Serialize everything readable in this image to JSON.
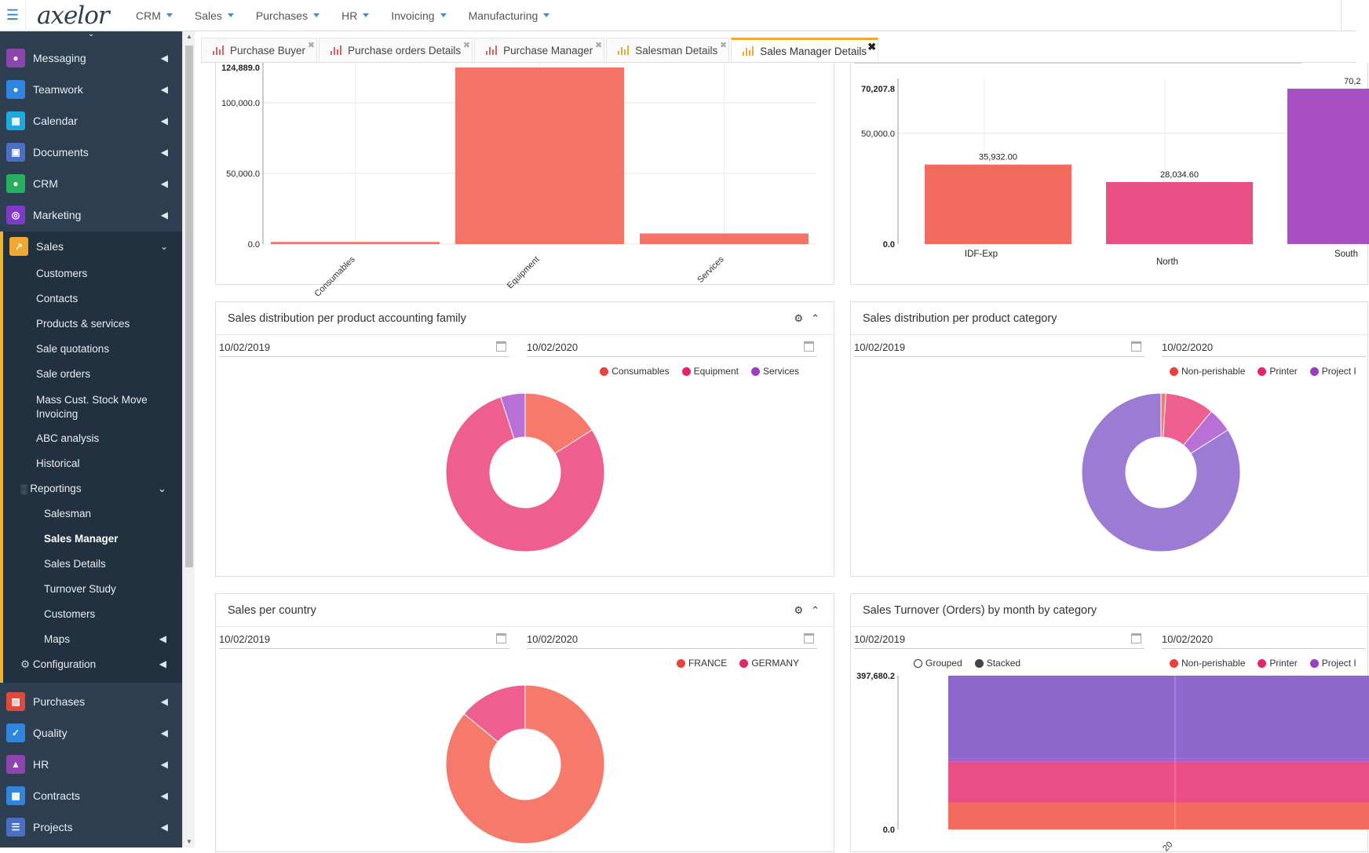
{
  "topbar": {
    "logo": "axelor",
    "menu": [
      "CRM",
      "Sales",
      "Purchases",
      "HR",
      "Invoicing",
      "Manufacturing"
    ]
  },
  "sidebar": {
    "modules_top": [
      {
        "label": "Messaging",
        "icon": "users-icon",
        "color": "#8e44ad"
      },
      {
        "label": "Teamwork",
        "icon": "user-icon",
        "color": "#2e86de"
      },
      {
        "label": "Calendar",
        "icon": "calendar-icon",
        "color": "#1da9e0"
      },
      {
        "label": "Documents",
        "icon": "document-icon",
        "color": "#4a6fc4"
      },
      {
        "label": "CRM",
        "icon": "user-icon",
        "color": "#27ae60"
      },
      {
        "label": "Marketing",
        "icon": "target-icon",
        "color": "#7d3cc8"
      }
    ],
    "sales": {
      "label": "Sales",
      "icon": "chart-line-icon",
      "color": "#f0a830",
      "items": [
        "Customers",
        "Contacts",
        "Products & services",
        "Sale quotations",
        "Sale orders",
        "Mass Cust. Stock Move Invoicing",
        "ABC analysis",
        "Historical"
      ],
      "reportings": {
        "label": "Reportings",
        "items": [
          "Salesman",
          "Sales Manager",
          "Sales Details",
          "Turnover Study",
          "Customers",
          "Maps"
        ],
        "active": "Sales Manager"
      },
      "configuration": "Configuration"
    },
    "modules_bottom": [
      {
        "label": "Purchases",
        "icon": "cart-icon",
        "color": "#e04a3c"
      },
      {
        "label": "Quality",
        "icon": "check-icon",
        "color": "#2e86de"
      },
      {
        "label": "HR",
        "icon": "org-chart-icon",
        "color": "#8e44ad"
      },
      {
        "label": "Contracts",
        "icon": "briefcase-icon",
        "color": "#2e86de"
      },
      {
        "label": "Projects",
        "icon": "list-icon",
        "color": "#4a6fc4"
      }
    ]
  },
  "tabs": [
    {
      "label": "Purchase Buyer",
      "active": false
    },
    {
      "label": "Purchase orders Details",
      "active": false
    },
    {
      "label": "Purchase Manager",
      "active": false
    },
    {
      "label": "Salesman Details",
      "active": false
    },
    {
      "label": "Sales Manager Details",
      "active": true
    }
  ],
  "panels": {
    "top_left": {
      "chart_data": {
        "type": "bar",
        "categories": [
          "Consumables",
          "Equipment",
          "Services"
        ],
        "values": [
          1500,
          124889.0,
          7500
        ],
        "ylim": [
          0,
          124889.0
        ],
        "yticks": [
          "124,889.0",
          "100,000.0",
          "50,000.0",
          "0.0"
        ],
        "color": "#f26b5e"
      }
    },
    "top_right": {
      "chart_data": {
        "type": "bar",
        "categories": [
          "IDF-Exp",
          "North",
          "South"
        ],
        "values": [
          35932.0,
          28034.6,
          70207.8
        ],
        "labels": [
          "35,932.00",
          "28,034.60",
          "70,2"
        ],
        "ylim": [
          0,
          70207.8
        ],
        "yticks": [
          "70,207.8",
          "50,000.0",
          "0.0"
        ],
        "colors": [
          "#f26b5e",
          "#e94e84",
          "#a94fc4"
        ]
      }
    },
    "accounting_family": {
      "title": "Sales distribution per product accounting family",
      "date_from": "10/02/2019",
      "date_to": "10/02/2020",
      "chart_data": {
        "type": "pie",
        "series": [
          {
            "name": "Consumables",
            "value": 16,
            "color": "#f57a6b"
          },
          {
            "name": "Equipment",
            "value": 79,
            "color": "#ee5f8f"
          },
          {
            "name": "Services",
            "value": 5,
            "color": "#b86fd6"
          }
        ],
        "legend_colors": [
          "#e8413e",
          "#e2266b",
          "#9b3fc1"
        ]
      }
    },
    "product_category": {
      "title": "Sales distribution per product category",
      "date_from": "10/02/2019",
      "date_to": "10/02/2020",
      "chart_data": {
        "type": "pie",
        "series": [
          {
            "name": "Non-perishable",
            "value": 1,
            "color": "#f57a6b"
          },
          {
            "name": "Printer",
            "value": 10,
            "color": "#ee5f8f"
          },
          {
            "name": "Project I",
            "value": 5,
            "color": "#b86fd6"
          },
          {
            "value": 84,
            "color": "#9b7bd4"
          }
        ],
        "legend_colors": [
          "#e8413e",
          "#e2266b",
          "#9b3fc1"
        ]
      }
    },
    "country": {
      "title": "Sales per country",
      "date_from": "10/02/2019",
      "date_to": "10/02/2020",
      "chart_data": {
        "type": "pie",
        "series": [
          {
            "name": "FRANCE",
            "value": 86,
            "color": "#f57a6b"
          },
          {
            "name": "GERMANY",
            "value": 14,
            "color": "#ee5f8f"
          }
        ],
        "legend_colors": [
          "#e8413e",
          "#e2266b"
        ]
      }
    },
    "turnover": {
      "title": "Sales Turnover (Orders) by month by category",
      "date_from": "10/02/2019",
      "date_to": "10/02/2020",
      "mode_options": [
        "Grouped",
        "Stacked"
      ],
      "chart_data": {
        "type": "area",
        "yticks": [
          "397,680.2",
          "0.0"
        ],
        "ylim": [
          0,
          397680.2
        ],
        "x_tick_partial": "20",
        "series": [
          {
            "name": "Non-perishable",
            "value": 70000,
            "color": "#f26b5e"
          },
          {
            "name": "Printer",
            "value": 105000,
            "color": "#e94e84"
          },
          {
            "name": "Project I",
            "value": 8000,
            "color": "#b055d0"
          },
          {
            "value": 214680.2,
            "color": "#8e68cc"
          }
        ],
        "legend_colors": [
          "#e8413e",
          "#e2266b",
          "#9b3fc1"
        ]
      }
    }
  }
}
